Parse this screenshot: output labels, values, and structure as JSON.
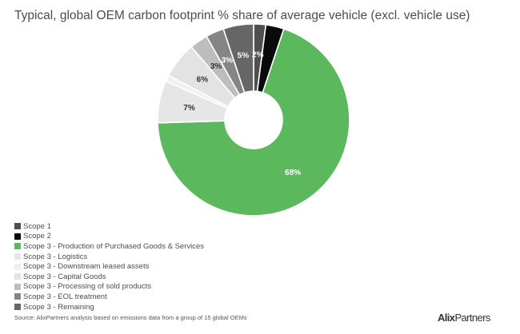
{
  "brand": {
    "name": "AlixPartners"
  },
  "source": "Source: AlixPartners analysis based on emissions data from a group of 15 global OEMs",
  "chart_data": {
    "type": "pie",
    "donut": true,
    "title": "Typical, global OEM carbon footprint % share of average vehicle (excl. vehicle use)",
    "legend_position": "bottom-left",
    "categories": [
      "Scope 1",
      "Scope 2",
      "Scope 3 - Production of Purchased Goods & Services",
      "Scope 3 - Logistics",
      "Scope 3 - Downstream leased assets",
      "Scope 3 - Capital Goods",
      "Scope 3 - Processing of sold products",
      "Scope 3 - EOL treatment",
      "Scope 3 - Remaining"
    ],
    "values": [
      2,
      3,
      68,
      7,
      1,
      6,
      3,
      3,
      5
    ],
    "data_labels": [
      "2%",
      "",
      "68%",
      "7%",
      "",
      "6%",
      "3%",
      "3%",
      "5%"
    ],
    "colors": [
      "#4f4f4f",
      "#0a0a0a",
      "#5cb85c",
      "#e6e6e6",
      "#f0f0f0",
      "#e3e3e3",
      "#bdbdbd",
      "#858585",
      "#666666"
    ]
  }
}
